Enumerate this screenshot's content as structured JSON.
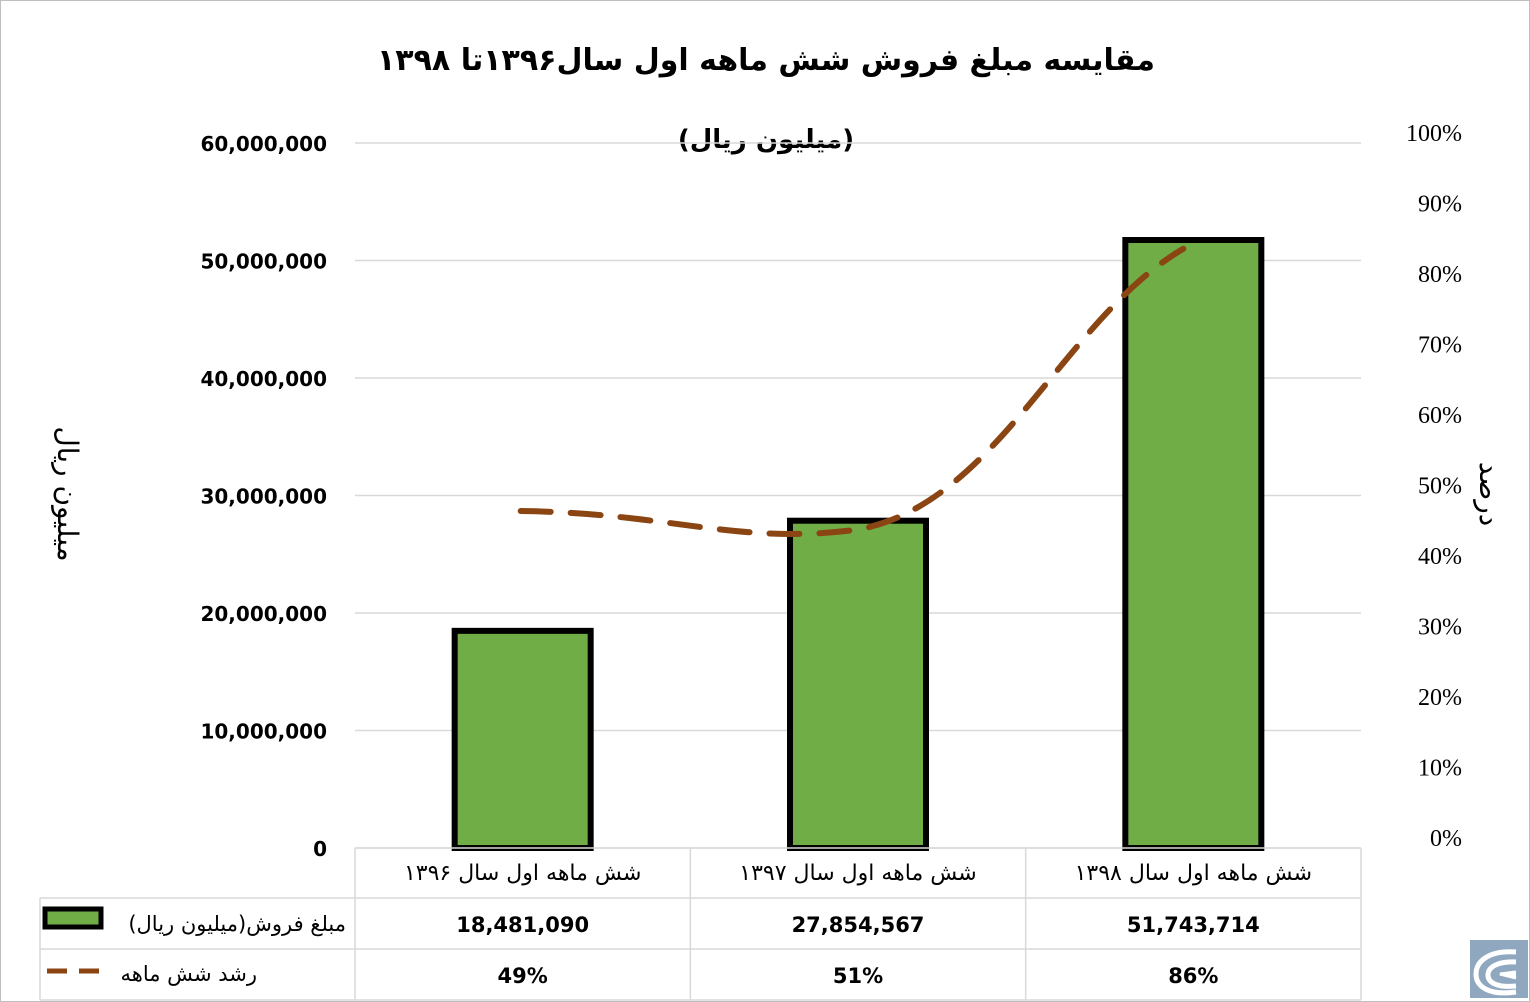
{
  "chart_data": {
    "type": "bar",
    "title": "مقایسه مبلغ فروش شش ماهه اول سال۱۳۹۶تا ۱۳۹۸",
    "subtitle": "(میلیون ریال)",
    "ylabel_left": "میلیون ریال",
    "ylabel_right": "درصد",
    "categories": [
      "شش ماهه اول سال ۱۳۹۶",
      "شش ماهه اول سال ۱۳۹۷",
      "شش ماهه اول سال ۱۳۹۸"
    ],
    "ylim_left": [
      0,
      60000000
    ],
    "yticks_left": [
      "0",
      "10,000,000",
      "20,000,000",
      "30,000,000",
      "40,000,000",
      "50,000,000",
      "60,000,000"
    ],
    "ylim_right": [
      0,
      100
    ],
    "yticks_right": [
      "0%",
      "10%",
      "20%",
      "30%",
      "40%",
      "50%",
      "60%",
      "70%",
      "80%",
      "90%",
      "100%"
    ],
    "grid": true,
    "legend": "data-table",
    "series": [
      {
        "name": "مبلغ فروش(میلیون ریال)",
        "type": "bar",
        "axis": "left",
        "color": "#70ad47",
        "values": [
          18481090,
          27854567,
          51743714
        ],
        "labels": [
          "18,481,090",
          "27,854,567",
          "51,743,714"
        ]
      },
      {
        "name": "رشد شش ماهه",
        "type": "line",
        "style": "dashed",
        "axis": "right",
        "color": "#8b4513",
        "values": [
          49,
          51,
          86
        ],
        "labels": [
          "49%",
          "51%",
          "86%"
        ]
      }
    ]
  },
  "icons": {
    "watermark": "logo-icon"
  }
}
